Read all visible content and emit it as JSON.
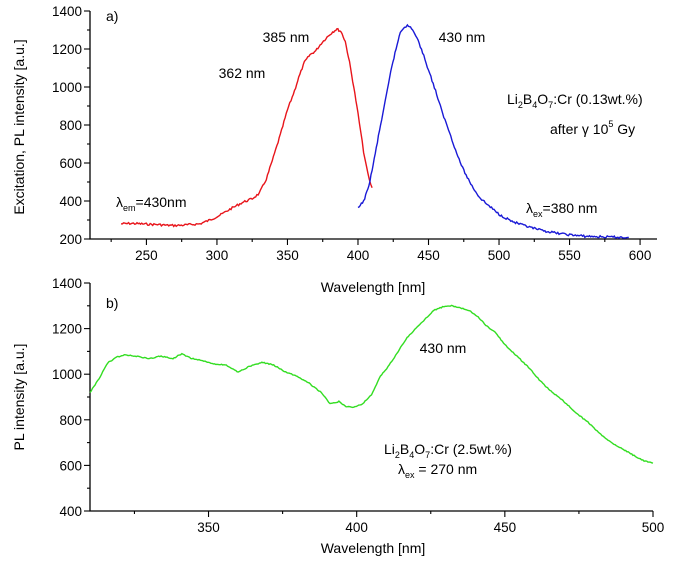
{
  "chart_data": [
    {
      "type": "line",
      "panel_label": "a)",
      "xlabel": "Wavelength [nm]",
      "ylabel": "Excitation, PL intensity [a.u.]",
      "xlim": [
        210,
        612
      ],
      "ylim": [
        200,
        1400
      ],
      "xticks": [
        250,
        300,
        350,
        400,
        450,
        500,
        550,
        600
      ],
      "yticks": [
        200,
        400,
        600,
        800,
        1000,
        1200,
        1400
      ],
      "grid": false,
      "legend": "none",
      "series": [
        {
          "color": "#e8151b",
          "points": [
            [
              232,
              280
            ],
            [
              240,
              282
            ],
            [
              250,
              278
            ],
            [
              258,
              276
            ],
            [
              265,
              272
            ],
            [
              272,
              271
            ],
            [
              280,
              275
            ],
            [
              288,
              280
            ],
            [
              295,
              300
            ],
            [
              302,
              325
            ],
            [
              310,
              360
            ],
            [
              318,
              392
            ],
            [
              325,
              412
            ],
            [
              330,
              440
            ],
            [
              335,
              515
            ],
            [
              340,
              630
            ],
            [
              345,
              750
            ],
            [
              350,
              880
            ],
            [
              355,
              980
            ],
            [
              358,
              1050
            ],
            [
              362,
              1130
            ],
            [
              366,
              1170
            ],
            [
              370,
              1190
            ],
            [
              374,
              1230
            ],
            [
              378,
              1262
            ],
            [
              382,
              1290
            ],
            [
              385,
              1305
            ],
            [
              388,
              1292
            ],
            [
              391,
              1240
            ],
            [
              394,
              1130
            ],
            [
              397,
              1000
            ],
            [
              400,
              860
            ],
            [
              402,
              760
            ],
            [
              404,
              660
            ],
            [
              406,
              580
            ],
            [
              408,
              510
            ],
            [
              410,
              470
            ]
          ]
        },
        {
          "color": "#1a1ad6",
          "points": [
            [
              400,
              360
            ],
            [
              404,
              400
            ],
            [
              407,
              460
            ],
            [
              410,
              560
            ],
            [
              413,
              680
            ],
            [
              416,
              800
            ],
            [
              420,
              950
            ],
            [
              424,
              1110
            ],
            [
              427,
              1200
            ],
            [
              430,
              1290
            ],
            [
              433,
              1318
            ],
            [
              435,
              1322
            ],
            [
              438,
              1310
            ],
            [
              441,
              1270
            ],
            [
              445,
              1200
            ],
            [
              450,
              1090
            ],
            [
              455,
              980
            ],
            [
              460,
              860
            ],
            [
              465,
              760
            ],
            [
              470,
              650
            ],
            [
              475,
              560
            ],
            [
              480,
              490
            ],
            [
              486,
              420
            ],
            [
              492,
              380
            ],
            [
              500,
              330
            ],
            [
              510,
              290
            ],
            [
              520,
              265
            ],
            [
              530,
              245
            ],
            [
              540,
              232
            ],
            [
              550,
              222
            ],
            [
              560,
              215
            ],
            [
              570,
              212
            ],
            [
              580,
              210
            ],
            [
              592,
              208
            ]
          ]
        }
      ],
      "annotations": {
        "peak_385": "385 nm",
        "peak_362": "362 nm",
        "peak_430": "430 nm",
        "lambda_em": {
          "symbol": "λ",
          "subscript": "em",
          "rest": "=430nm"
        },
        "lambda_ex": {
          "symbol": "λ",
          "subscript": "ex",
          "rest": "=380 nm"
        },
        "sample": {
          "p1": "Li",
          "s1": "2",
          "p2": "B",
          "s2": "4",
          "p3": "O",
          "s3": "7",
          "p4": ":Cr (0.13wt.%)"
        },
        "dose": {
          "p1": "after γ 10",
          "sup": "5",
          "p2": " Gy"
        }
      }
    },
    {
      "type": "line",
      "panel_label": "b)",
      "xlabel": "Wavelength [nm]",
      "ylabel": "PL intensity [a.u.]",
      "xlim": [
        310,
        500
      ],
      "ylim": [
        400,
        1400
      ],
      "xticks": [
        350,
        400,
        450,
        500
      ],
      "yticks": [
        400,
        600,
        800,
        1000,
        1200,
        1400
      ],
      "grid": false,
      "legend": "none",
      "series": [
        {
          "color": "#33dd22",
          "points": [
            [
              310,
              920
            ],
            [
              313,
              980
            ],
            [
              316,
              1050
            ],
            [
              319,
              1075
            ],
            [
              322,
              1085
            ],
            [
              326,
              1078
            ],
            [
              330,
              1068
            ],
            [
              334,
              1080
            ],
            [
              338,
              1068
            ],
            [
              341,
              1090
            ],
            [
              344,
              1070
            ],
            [
              348,
              1060
            ],
            [
              352,
              1045
            ],
            [
              356,
              1040
            ],
            [
              360,
              1010
            ],
            [
              364,
              1035
            ],
            [
              368,
              1052
            ],
            [
              372,
              1040
            ],
            [
              376,
              1010
            ],
            [
              380,
              990
            ],
            [
              384,
              960
            ],
            [
              388,
              920
            ],
            [
              391,
              870
            ],
            [
              394,
              880
            ],
            [
              396,
              860
            ],
            [
              399,
              855
            ],
            [
              402,
              870
            ],
            [
              405,
              910
            ],
            [
              408,
              990
            ],
            [
              411,
              1040
            ],
            [
              414,
              1100
            ],
            [
              417,
              1160
            ],
            [
              420,
              1200
            ],
            [
              423,
              1240
            ],
            [
              426,
              1280
            ],
            [
              429,
              1295
            ],
            [
              432,
              1300
            ],
            [
              435,
              1290
            ],
            [
              438,
              1280
            ],
            [
              441,
              1250
            ],
            [
              444,
              1210
            ],
            [
              447,
              1180
            ],
            [
              450,
              1130
            ],
            [
              454,
              1080
            ],
            [
              458,
              1030
            ],
            [
              462,
              970
            ],
            [
              466,
              920
            ],
            [
              470,
              880
            ],
            [
              474,
              830
            ],
            [
              478,
              790
            ],
            [
              482,
              740
            ],
            [
              486,
              700
            ],
            [
              490,
              670
            ],
            [
              494,
              640
            ],
            [
              497,
              620
            ],
            [
              500,
              610
            ]
          ]
        }
      ],
      "annotations": {
        "peak_430": "430 nm",
        "sample": {
          "p1": "Li",
          "s1": "2",
          "p2": "B",
          "s2": "4",
          "p3": "O",
          "s3": "7",
          "p4": ":Cr (2.5wt.%)"
        },
        "lambda_ex": {
          "symbol": "λ",
          "subscript": "ex",
          "rest": " = 270 nm"
        }
      }
    }
  ]
}
